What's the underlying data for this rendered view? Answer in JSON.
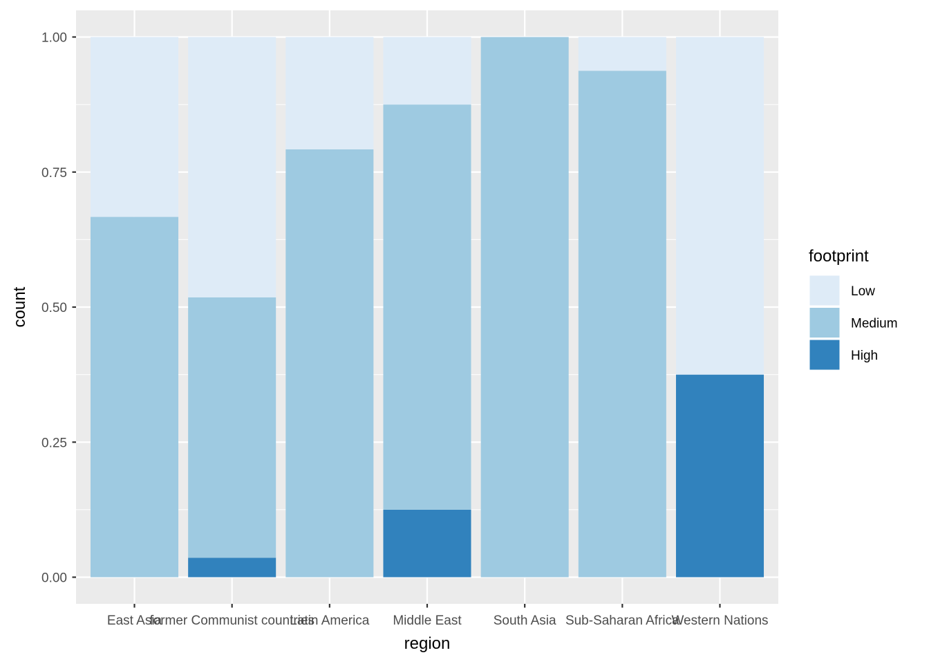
{
  "chart_data": {
    "type": "bar",
    "stacked": true,
    "normalized": true,
    "xlabel": "region",
    "ylabel": "count",
    "categories": [
      "East Asia",
      "former Communist countries",
      "Latin America",
      "Middle East",
      "South Asia",
      "Sub-Saharan Africa",
      "Western Nations"
    ],
    "series": [
      {
        "name": "Low",
        "color": "#deebf7",
        "values": [
          0.333,
          0.482,
          0.208,
          0.125,
          0.0,
          0.0625,
          0.625
        ]
      },
      {
        "name": "Medium",
        "color": "#9ecae1",
        "values": [
          0.667,
          0.482,
          0.792,
          0.75,
          1.0,
          0.9375,
          0.0
        ]
      },
      {
        "name": "High",
        "color": "#3182bd",
        "values": [
          0.0,
          0.036,
          0.0,
          0.125,
          0.0,
          0.0,
          0.375
        ]
      }
    ],
    "ylim": [
      0,
      1
    ],
    "yticks": [
      0,
      0.25,
      0.5,
      0.75,
      1
    ],
    "ytick_labels": [
      "0.00",
      "0.25",
      "0.50",
      "0.75",
      "1.00"
    ],
    "grid": true,
    "legend": {
      "title": "footprint",
      "position": "right",
      "entries": [
        "Low",
        "Medium",
        "High"
      ]
    }
  }
}
